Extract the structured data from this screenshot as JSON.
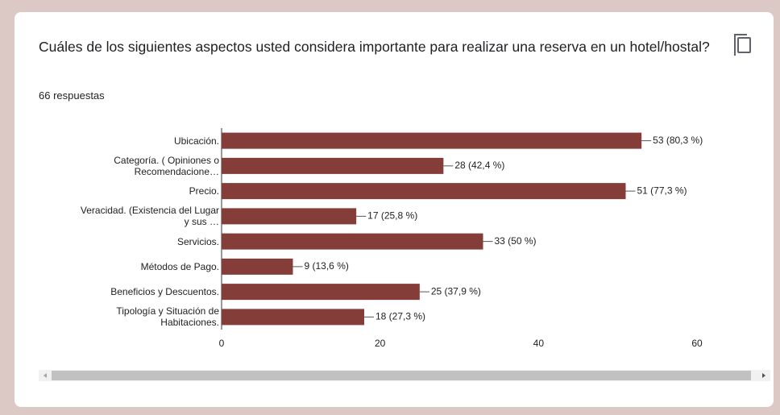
{
  "chart_data": {
    "type": "bar",
    "orientation": "horizontal",
    "title": "Cuáles de los siguientes aspectos usted considera importante para realizar una reserva en un hotel/hostal?",
    "subtitle": "66 respuestas",
    "categories": [
      "Ubicación.",
      "Categoría. ( Opiniones o\nRecomendacione…",
      "Precio.",
      "Veracidad. (Existencia del Lugar\ny sus …",
      "Servicios.",
      "Métodos de Pago.",
      "Beneficios y Descuentos.",
      "Tipología y Situación de\nHabitaciones."
    ],
    "values": [
      53,
      28,
      51,
      17,
      33,
      9,
      25,
      18
    ],
    "value_labels": [
      "53 (80,3 %)",
      "28 (42,4 %)",
      "51 (77,3 %)",
      "17 (25,8 %)",
      "33 (50 %)",
      "9 (13,6 %)",
      "25 (37,9 %)",
      "18 (27,3 %)"
    ],
    "color": "#843d38",
    "xlim": [
      0,
      60
    ],
    "xticks": [
      0,
      20,
      40,
      60
    ],
    "grid": false
  }
}
